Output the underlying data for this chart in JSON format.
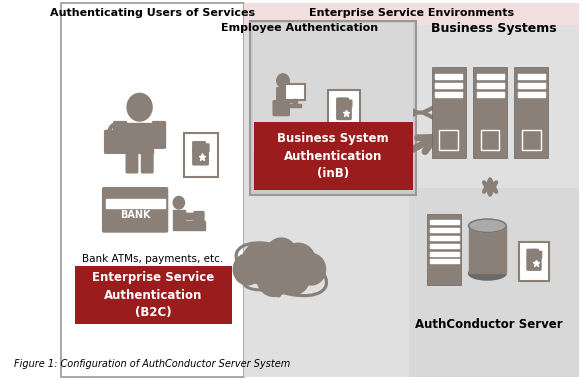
{
  "fig_width": 5.82,
  "fig_height": 3.8,
  "dpi": 100,
  "bg_color": "#ffffff",
  "left_panel_bg": "#ffffff",
  "right_panel_bg": "#e0e0e0",
  "pink_bg": "#f2dede",
  "gray": "#8a8078",
  "dark_gray": "#555555",
  "red_box": "#9b1c1c",
  "title_left": "Authenticating Users of Services",
  "title_right": "Enterprise Service Environments",
  "b2c_text": "Enterprise Service\nAuthentication\n(B2C)",
  "inb_text": "Business System\nAuthentication\n(inB)",
  "bank_text": "BANK",
  "bank_atm_text": "Bank ATMs, payments, etc.",
  "emp_auth_text": "Employee Authentication",
  "biz_sys_text": "Business Systems",
  "auth_server_text": "AuthConductor Server"
}
